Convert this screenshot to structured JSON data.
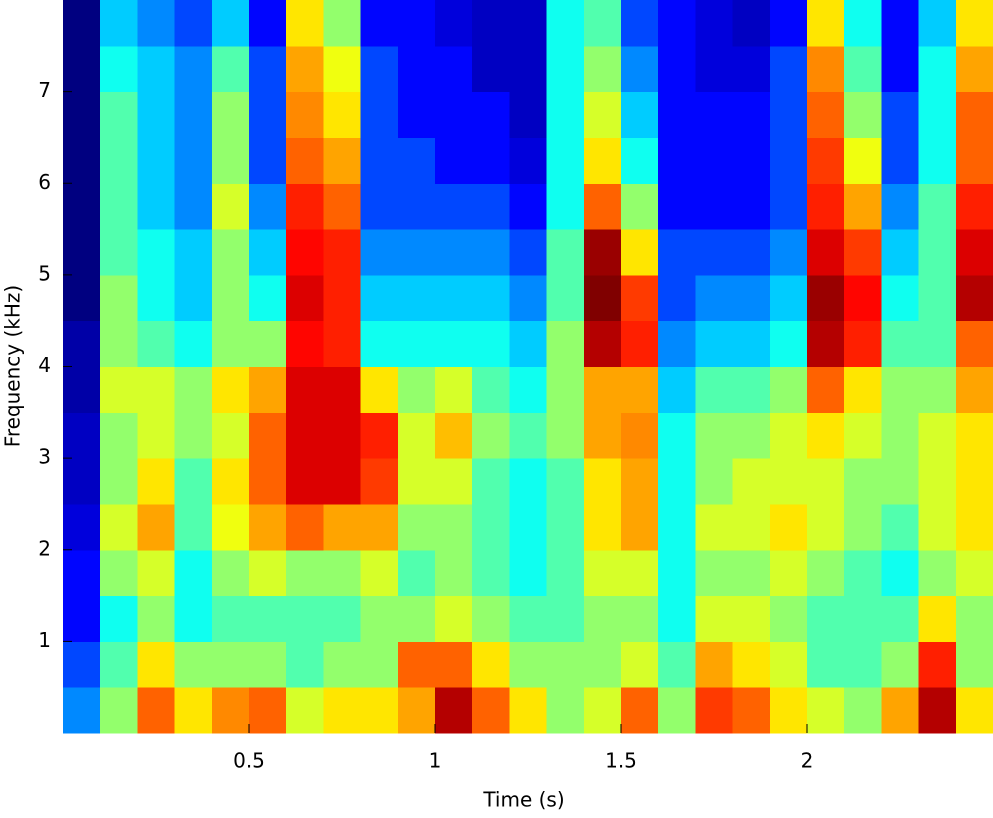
{
  "chart_data": {
    "type": "spectrogram",
    "colormap": "jet",
    "x_label": "Time (s)",
    "y_label": "Frequency (kHz)",
    "xlim": [
      0,
      2.5
    ],
    "ylim": [
      0,
      8
    ],
    "xticks": [
      0.5,
      1,
      1.5,
      2
    ],
    "yticks": [
      1,
      2,
      3,
      4,
      5,
      6,
      7
    ],
    "values": [
      [
        35,
        30,
        25,
        25,
        22,
        20,
        20,
        18,
        18,
        15,
        15,
        15,
        15,
        15,
        15,
        15
      ],
      [
        55,
        50,
        45,
        55,
        60,
        55,
        55,
        60,
        55,
        55,
        50,
        50,
        50,
        50,
        45,
        40
      ],
      [
        75,
        65,
        55,
        60,
        70,
        65,
        60,
        60,
        50,
        45,
        45,
        40,
        40,
        40,
        40,
        35
      ],
      [
        65,
        55,
        45,
        45,
        50,
        50,
        55,
        55,
        45,
        40,
        40,
        35,
        35,
        35,
        35,
        30
      ],
      [
        72,
        55,
        50,
        55,
        62,
        65,
        60,
        65,
        55,
        55,
        55,
        60,
        55,
        55,
        50,
        40
      ],
      [
        75,
        55,
        50,
        60,
        70,
        75,
        75,
        70,
        55,
        45,
        40,
        35,
        30,
        30,
        30,
        25
      ],
      [
        60,
        50,
        50,
        55,
        75,
        85,
        85,
        85,
        82,
        85,
        82,
        80,
        75,
        72,
        70,
        65
      ],
      [
        65,
        55,
        50,
        55,
        70,
        85,
        85,
        85,
        80,
        80,
        80,
        75,
        70,
        65,
        62,
        55
      ],
      [
        65,
        55,
        55,
        60,
        70,
        78,
        80,
        65,
        45,
        40,
        35,
        30,
        30,
        30,
        30,
        25
      ],
      [
        70,
        75,
        55,
        50,
        55,
        60,
        60,
        55,
        45,
        40,
        35,
        30,
        30,
        25,
        25,
        25
      ],
      [
        88,
        75,
        60,
        55,
        55,
        60,
        68,
        60,
        45,
        40,
        35,
        30,
        25,
        25,
        25,
        22
      ],
      [
        75,
        65,
        55,
        50,
        50,
        50,
        55,
        50,
        45,
        40,
        35,
        30,
        25,
        25,
        20,
        20
      ],
      [
        65,
        55,
        50,
        45,
        45,
        45,
        50,
        45,
        40,
        35,
        30,
        25,
        22,
        20,
        20,
        20
      ],
      [
        55,
        55,
        50,
        50,
        50,
        50,
        55,
        55,
        55,
        50,
        50,
        45,
        45,
        45,
        45,
        45
      ],
      [
        60,
        55,
        55,
        60,
        65,
        65,
        70,
        70,
        88,
        92,
        90,
        75,
        65,
        60,
        55,
        50
      ],
      [
        75,
        60,
        55,
        60,
        70,
        70,
        72,
        70,
        80,
        78,
        65,
        55,
        45,
        40,
        35,
        30
      ],
      [
        55,
        50,
        45,
        45,
        45,
        45,
        45,
        40,
        35,
        30,
        30,
        25,
        25,
        25,
        25,
        25
      ],
      [
        78,
        70,
        60,
        55,
        60,
        55,
        55,
        50,
        40,
        35,
        30,
        25,
        25,
        25,
        22,
        22
      ],
      [
        75,
        65,
        60,
        55,
        60,
        60,
        55,
        50,
        40,
        35,
        30,
        25,
        25,
        25,
        22,
        20
      ],
      [
        65,
        60,
        55,
        60,
        65,
        60,
        60,
        55,
        45,
        40,
        35,
        30,
        30,
        30,
        30,
        25
      ],
      [
        60,
        50,
        50,
        55,
        60,
        60,
        65,
        75,
        88,
        90,
        85,
        80,
        78,
        75,
        72,
        65
      ],
      [
        55,
        50,
        50,
        50,
        55,
        55,
        60,
        65,
        80,
        82,
        78,
        70,
        62,
        55,
        50,
        45
      ],
      [
        70,
        55,
        50,
        45,
        50,
        55,
        55,
        55,
        50,
        45,
        40,
        35,
        30,
        30,
        25,
        25
      ],
      [
        88,
        80,
        65,
        55,
        60,
        60,
        60,
        55,
        50,
        50,
        50,
        50,
        45,
        45,
        45,
        40
      ],
      [
        65,
        55,
        55,
        60,
        65,
        65,
        65,
        70,
        75,
        88,
        85,
        80,
        75,
        75,
        70,
        65
      ]
    ]
  }
}
